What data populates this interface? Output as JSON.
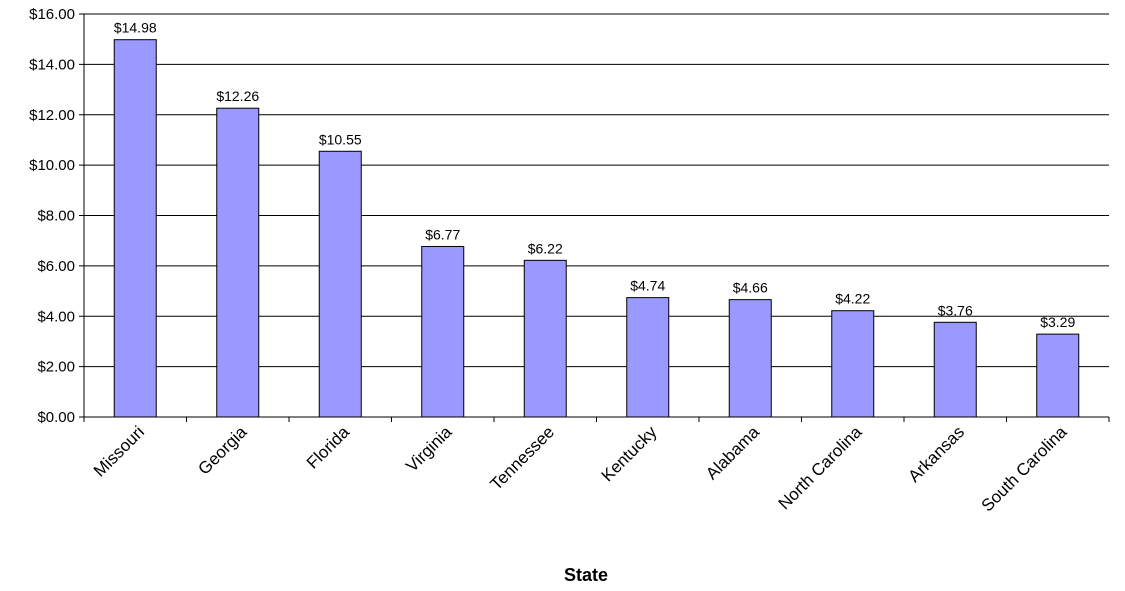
{
  "chart_data": {
    "type": "bar",
    "title": "",
    "xlabel": "State",
    "ylabel": "",
    "categories": [
      "Missouri",
      "Georgia",
      "Florida",
      "Virginia",
      "Tennessee",
      "Kentucky",
      "Alabama",
      "North Carolina",
      "Arkansas",
      "South Carolina"
    ],
    "values": [
      14.98,
      12.26,
      10.55,
      6.77,
      6.22,
      4.74,
      4.66,
      4.22,
      3.76,
      3.29
    ],
    "data_labels": [
      "$14.98",
      "$12.26",
      "$10.55",
      "$6.77",
      "$6.22",
      "$4.74",
      "$4.66",
      "$4.22",
      "$3.76",
      "$3.29"
    ],
    "ylim": [
      0,
      16
    ],
    "y_ticks": [
      0,
      2,
      4,
      6,
      8,
      10,
      12,
      14,
      16
    ],
    "y_tick_labels": [
      "$0.00",
      "$2.00",
      "$4.00",
      "$6.00",
      "$8.00",
      "$10.00",
      "$12.00",
      "$14.00",
      "$16.00"
    ],
    "grid": true,
    "legend": "none",
    "colors": {
      "bar_fill": "#9999ff",
      "bar_stroke": "#000000",
      "grid": "#000000",
      "axis": "#000000"
    }
  }
}
